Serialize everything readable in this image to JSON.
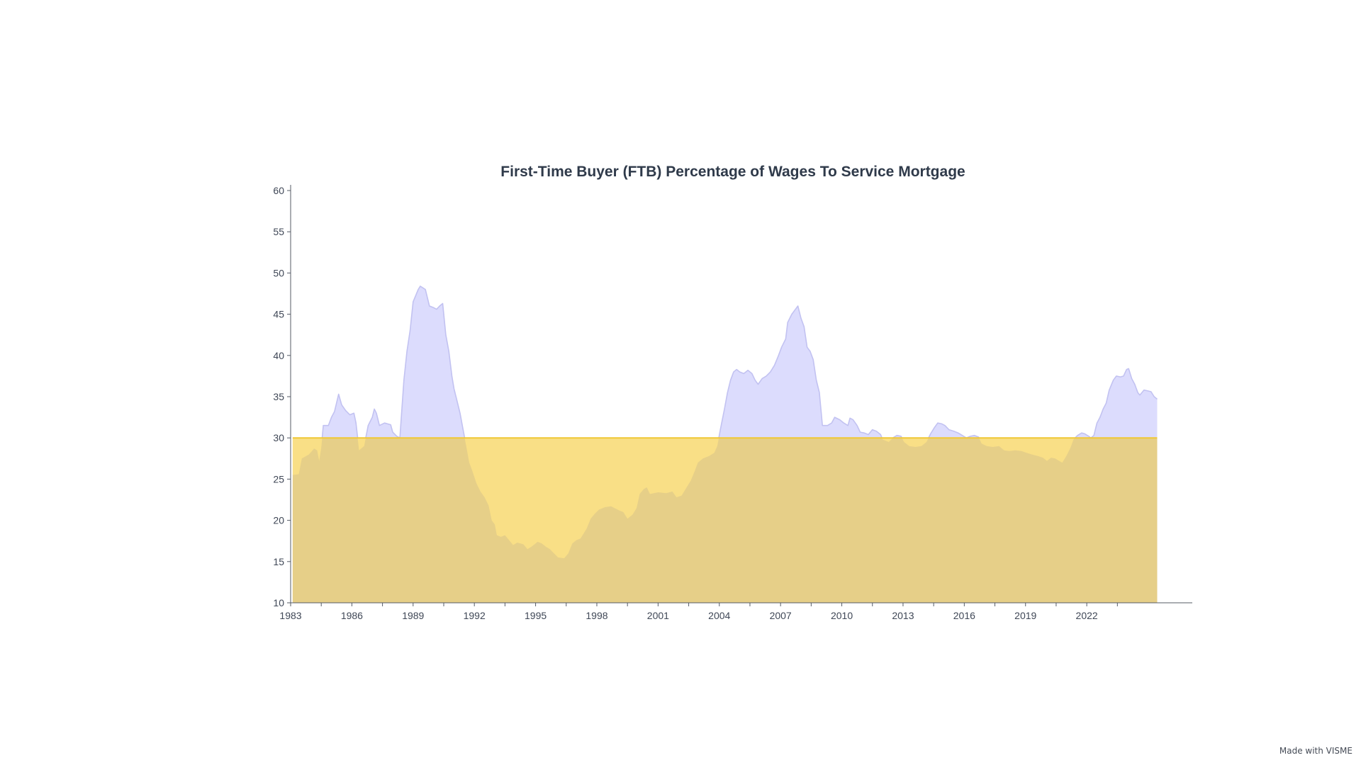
{
  "watermark": "Made with VISME",
  "colors": {
    "series_fill": "#dcdcfd",
    "series_stroke": "#c2c2f1",
    "threshold_fill": "#f9df86",
    "threshold_stroke": "#f0c835",
    "overlap_fill": "#e6cf88",
    "axis": "#555b66",
    "title": "#2f3a4a"
  },
  "chart_data": {
    "type": "area",
    "title": "First-Time Buyer (FTB) Percentage of Wages To Service Mortgage",
    "xlabel": "",
    "ylabel": "",
    "xlim": [
      1983,
      2027.1
    ],
    "ylim": [
      10,
      60
    ],
    "y_ticks": [
      10,
      15,
      20,
      25,
      30,
      35,
      40,
      45,
      50,
      55,
      60
    ],
    "x_tick_labels": [
      1983,
      1986,
      1989,
      1992,
      1995,
      1998,
      2001,
      2004,
      2007,
      2010,
      2013,
      2016,
      2019,
      2022
    ],
    "x_minor_ticks": [
      1984.5,
      1987.5,
      1990.5,
      1993.5,
      1996.5,
      1999.5,
      2002.5,
      2005.5,
      2008.5,
      2011.5,
      2014.5,
      2017.5,
      2020.5,
      2023.5
    ],
    "grid": false,
    "legend": "none",
    "threshold": 30,
    "series": [
      {
        "points": [
          [
            1983.1,
            25.5
          ],
          [
            1983.4,
            25.6
          ],
          [
            1983.55,
            27.5
          ],
          [
            1983.9,
            28.0
          ],
          [
            1984.15,
            28.7
          ],
          [
            1984.3,
            28.5
          ],
          [
            1984.4,
            27.2
          ],
          [
            1984.5,
            28.8
          ],
          [
            1984.6,
            31.5
          ],
          [
            1984.85,
            31.5
          ],
          [
            1985.0,
            32.5
          ],
          [
            1985.15,
            33.2
          ],
          [
            1985.35,
            35.3
          ],
          [
            1985.5,
            34.0
          ],
          [
            1985.7,
            33.3
          ],
          [
            1985.9,
            32.8
          ],
          [
            1986.1,
            33.0
          ],
          [
            1986.2,
            31.8
          ],
          [
            1986.35,
            28.5
          ],
          [
            1986.6,
            29.0
          ],
          [
            1986.8,
            31.5
          ],
          [
            1987.0,
            32.5
          ],
          [
            1987.1,
            33.5
          ],
          [
            1987.2,
            33.0
          ],
          [
            1987.35,
            31.5
          ],
          [
            1987.6,
            31.8
          ],
          [
            1987.9,
            31.6
          ],
          [
            1988.0,
            30.7
          ],
          [
            1988.2,
            30.2
          ],
          [
            1988.35,
            30.0
          ],
          [
            1988.55,
            37.0
          ],
          [
            1988.7,
            40.5
          ],
          [
            1988.85,
            43.0
          ],
          [
            1989.0,
            46.5
          ],
          [
            1989.25,
            48.0
          ],
          [
            1989.35,
            48.4
          ],
          [
            1989.6,
            48.0
          ],
          [
            1989.8,
            46.0
          ],
          [
            1990.0,
            45.8
          ],
          [
            1990.15,
            45.6
          ],
          [
            1990.3,
            46.0
          ],
          [
            1990.45,
            46.3
          ],
          [
            1990.6,
            42.5
          ],
          [
            1990.75,
            40.5
          ],
          [
            1990.9,
            37.5
          ],
          [
            1991.0,
            36.0
          ],
          [
            1991.15,
            34.5
          ],
          [
            1991.3,
            33.0
          ],
          [
            1991.45,
            31.0
          ],
          [
            1991.6,
            29.0
          ],
          [
            1991.75,
            27.0
          ],
          [
            1991.9,
            26.0
          ],
          [
            1992.1,
            24.5
          ],
          [
            1992.3,
            23.5
          ],
          [
            1992.5,
            22.8
          ],
          [
            1992.7,
            21.8
          ],
          [
            1992.85,
            20.0
          ],
          [
            1993.0,
            19.5
          ],
          [
            1993.1,
            18.2
          ],
          [
            1993.3,
            18.0
          ],
          [
            1993.5,
            18.2
          ],
          [
            1993.7,
            17.6
          ],
          [
            1993.9,
            17.0
          ],
          [
            1994.1,
            17.3
          ],
          [
            1994.4,
            17.1
          ],
          [
            1994.6,
            16.5
          ],
          [
            1994.8,
            16.8
          ],
          [
            1995.1,
            17.4
          ],
          [
            1995.3,
            17.2
          ],
          [
            1995.5,
            16.8
          ],
          [
            1995.7,
            16.5
          ],
          [
            1995.9,
            16.0
          ],
          [
            1996.1,
            15.5
          ],
          [
            1996.4,
            15.4
          ],
          [
            1996.6,
            16.0
          ],
          [
            1996.8,
            17.2
          ],
          [
            1997.0,
            17.6
          ],
          [
            1997.2,
            17.8
          ],
          [
            1997.35,
            18.4
          ],
          [
            1997.5,
            19.0
          ],
          [
            1997.7,
            20.2
          ],
          [
            1997.9,
            20.8
          ],
          [
            1998.1,
            21.3
          ],
          [
            1998.4,
            21.6
          ],
          [
            1998.7,
            21.7
          ],
          [
            1998.85,
            21.5
          ],
          [
            1999.1,
            21.2
          ],
          [
            1999.3,
            21.0
          ],
          [
            1999.5,
            20.2
          ],
          [
            1999.75,
            20.7
          ],
          [
            1999.95,
            21.5
          ],
          [
            2000.1,
            23.2
          ],
          [
            2000.3,
            23.8
          ],
          [
            2000.45,
            24.0
          ],
          [
            2000.6,
            23.2
          ],
          [
            2000.8,
            23.3
          ],
          [
            2001.0,
            23.4
          ],
          [
            2001.4,
            23.3
          ],
          [
            2001.7,
            23.5
          ],
          [
            2001.9,
            22.8
          ],
          [
            2002.15,
            23.0
          ],
          [
            2002.35,
            23.8
          ],
          [
            2002.6,
            24.8
          ],
          [
            2002.8,
            26.0
          ],
          [
            2002.95,
            27.0
          ],
          [
            2003.2,
            27.5
          ],
          [
            2003.5,
            27.8
          ],
          [
            2003.75,
            28.2
          ],
          [
            2003.9,
            29.0
          ],
          [
            2004.05,
            31.0
          ],
          [
            2004.25,
            33.5
          ],
          [
            2004.4,
            35.5
          ],
          [
            2004.55,
            37.0
          ],
          [
            2004.7,
            38.0
          ],
          [
            2004.85,
            38.3
          ],
          [
            2005.0,
            38.0
          ],
          [
            2005.2,
            37.8
          ],
          [
            2005.4,
            38.2
          ],
          [
            2005.6,
            37.8
          ],
          [
            2005.75,
            37.0
          ],
          [
            2005.9,
            36.5
          ],
          [
            2006.1,
            37.2
          ],
          [
            2006.3,
            37.5
          ],
          [
            2006.5,
            38.0
          ],
          [
            2006.7,
            38.8
          ],
          [
            2006.9,
            40.0
          ],
          [
            2007.05,
            41.0
          ],
          [
            2007.25,
            42.0
          ],
          [
            2007.35,
            44.0
          ],
          [
            2007.55,
            45.0
          ],
          [
            2007.7,
            45.5
          ],
          [
            2007.85,
            46.0
          ],
          [
            2008.0,
            44.5
          ],
          [
            2008.15,
            43.5
          ],
          [
            2008.3,
            41.0
          ],
          [
            2008.45,
            40.5
          ],
          [
            2008.6,
            39.5
          ],
          [
            2008.75,
            37.0
          ],
          [
            2008.9,
            35.5
          ],
          [
            2009.05,
            31.5
          ],
          [
            2009.3,
            31.5
          ],
          [
            2009.5,
            31.8
          ],
          [
            2009.65,
            32.5
          ],
          [
            2009.9,
            32.2
          ],
          [
            2010.1,
            31.8
          ],
          [
            2010.3,
            31.5
          ],
          [
            2010.4,
            32.4
          ],
          [
            2010.55,
            32.2
          ],
          [
            2010.75,
            31.5
          ],
          [
            2010.9,
            30.7
          ],
          [
            2011.1,
            30.6
          ],
          [
            2011.3,
            30.4
          ],
          [
            2011.5,
            31.0
          ],
          [
            2011.7,
            30.8
          ],
          [
            2011.9,
            30.4
          ],
          [
            2012.0,
            29.8
          ],
          [
            2012.3,
            29.5
          ],
          [
            2012.5,
            30.0
          ],
          [
            2012.7,
            30.3
          ],
          [
            2012.9,
            30.2
          ],
          [
            2013.05,
            29.5
          ],
          [
            2013.3,
            29.0
          ],
          [
            2013.6,
            28.9
          ],
          [
            2013.9,
            29.0
          ],
          [
            2014.15,
            29.5
          ],
          [
            2014.35,
            30.5
          ],
          [
            2014.55,
            31.3
          ],
          [
            2014.7,
            31.8
          ],
          [
            2014.9,
            31.7
          ],
          [
            2015.05,
            31.5
          ],
          [
            2015.25,
            31.0
          ],
          [
            2015.5,
            30.8
          ],
          [
            2015.7,
            30.6
          ],
          [
            2015.9,
            30.3
          ],
          [
            2016.1,
            30.0
          ],
          [
            2016.3,
            30.2
          ],
          [
            2016.5,
            30.3
          ],
          [
            2016.7,
            30.1
          ],
          [
            2016.85,
            29.3
          ],
          [
            2017.1,
            29.0
          ],
          [
            2017.4,
            28.9
          ],
          [
            2017.7,
            29.0
          ],
          [
            2017.95,
            28.5
          ],
          [
            2018.2,
            28.4
          ],
          [
            2018.5,
            28.5
          ],
          [
            2018.8,
            28.4
          ],
          [
            2019.05,
            28.2
          ],
          [
            2019.3,
            28.0
          ],
          [
            2019.6,
            27.8
          ],
          [
            2019.85,
            27.6
          ],
          [
            2020.05,
            27.2
          ],
          [
            2020.25,
            27.6
          ],
          [
            2020.45,
            27.5
          ],
          [
            2020.65,
            27.2
          ],
          [
            2020.8,
            27.0
          ],
          [
            2021.0,
            27.8
          ],
          [
            2021.2,
            28.8
          ],
          [
            2021.35,
            29.8
          ],
          [
            2021.55,
            30.3
          ],
          [
            2021.75,
            30.6
          ],
          [
            2021.9,
            30.5
          ],
          [
            2022.1,
            30.2
          ],
          [
            2022.2,
            30.0
          ],
          [
            2022.35,
            30.3
          ],
          [
            2022.5,
            31.8
          ],
          [
            2022.65,
            32.5
          ],
          [
            2022.8,
            33.5
          ],
          [
            2022.95,
            34.2
          ],
          [
            2023.1,
            35.8
          ],
          [
            2023.3,
            37.0
          ],
          [
            2023.45,
            37.5
          ],
          [
            2023.65,
            37.4
          ],
          [
            2023.8,
            37.5
          ],
          [
            2023.95,
            38.3
          ],
          [
            2024.05,
            38.4
          ],
          [
            2024.2,
            37.2
          ],
          [
            2024.35,
            36.5
          ],
          [
            2024.5,
            35.5
          ],
          [
            2024.6,
            35.2
          ],
          [
            2024.8,
            35.8
          ],
          [
            2025.0,
            35.7
          ],
          [
            2025.15,
            35.6
          ],
          [
            2025.3,
            35.0
          ],
          [
            2025.45,
            34.7
          ]
        ]
      }
    ]
  }
}
